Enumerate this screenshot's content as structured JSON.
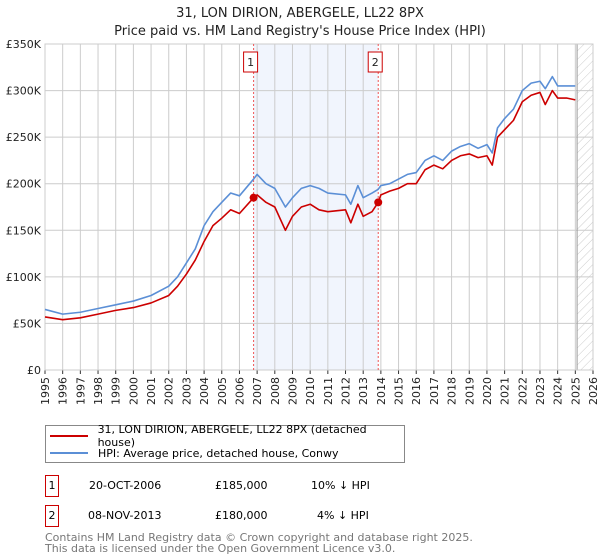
{
  "title": "31, LON DIRION, ABERGELE, LL22 8PX",
  "subtitle": "Price paid vs. HM Land Registry's House Price Index (HPI)",
  "chart_data": {
    "type": "line",
    "title": "31, LON DIRION, ABERGELE, LL22 8PX",
    "ylim": [
      0,
      350000
    ],
    "xlim": [
      1995,
      2026
    ],
    "yticks": [
      0,
      50000,
      100000,
      150000,
      200000,
      250000,
      300000,
      350000
    ],
    "ytick_labels": [
      "£0",
      "£50K",
      "£100K",
      "£150K",
      "£200K",
      "£250K",
      "£300K",
      "£350K"
    ],
    "xticks": [
      "1995",
      "1996",
      "1997",
      "1998",
      "1999",
      "2000",
      "2001",
      "2002",
      "2003",
      "2004",
      "2005",
      "2006",
      "2007",
      "2008",
      "2009",
      "2010",
      "2011",
      "2012",
      "2013",
      "2014",
      "2015",
      "2016",
      "2017",
      "2018",
      "2019",
      "2020",
      "2021",
      "2022",
      "2023",
      "2024",
      "2025",
      "2026"
    ],
    "grid": true,
    "shaded_range": [
      2006.8,
      2013.85
    ],
    "forecast_hatch_from": 2025.1,
    "series": [
      {
        "name": "31, LON DIRION, ABERGELE, LL22 8PX (detached house)",
        "color": "#cc0000",
        "x": [
          1995,
          1996,
          1997,
          1998,
          1999,
          2000,
          2001,
          2002,
          2002.5,
          2003,
          2003.5,
          2004,
          2004.5,
          2005,
          2005.5,
          2006,
          2006.8,
          2007,
          2007.5,
          2008,
          2008.6,
          2009,
          2009.5,
          2010,
          2010.5,
          2011,
          2012,
          2012.3,
          2012.7,
          2013,
          2013.5,
          2013.85,
          2014,
          2014.5,
          2015,
          2015.5,
          2016,
          2016.5,
          2017,
          2017.5,
          2018,
          2018.5,
          2019,
          2019.5,
          2020,
          2020.3,
          2020.6,
          2021,
          2021.5,
          2022,
          2022.5,
          2023,
          2023.3,
          2023.7,
          2024,
          2024.5,
          2025
        ],
        "y": [
          57000,
          54000,
          56000,
          60000,
          64000,
          67000,
          72000,
          80000,
          90000,
          103000,
          118000,
          138000,
          155000,
          163000,
          172000,
          168000,
          185000,
          188000,
          180000,
          175000,
          150000,
          165000,
          175000,
          178000,
          172000,
          170000,
          172000,
          158000,
          178000,
          165000,
          170000,
          180000,
          188000,
          192000,
          195000,
          200000,
          200000,
          215000,
          220000,
          216000,
          225000,
          230000,
          232000,
          228000,
          230000,
          220000,
          250000,
          258000,
          268000,
          288000,
          295000,
          298000,
          285000,
          300000,
          292000,
          292000,
          290000
        ]
      },
      {
        "name": "HPI: Average price, detached house, Conwy",
        "color": "#5b8fd6",
        "x": [
          1995,
          1996,
          1997,
          1998,
          1999,
          2000,
          2001,
          2002,
          2002.5,
          2003,
          2003.5,
          2004,
          2004.5,
          2005,
          2005.5,
          2006,
          2006.8,
          2007,
          2007.5,
          2008,
          2008.6,
          2009,
          2009.5,
          2010,
          2010.5,
          2011,
          2012,
          2012.3,
          2012.7,
          2013,
          2013.5,
          2013.85,
          2014,
          2014.5,
          2015,
          2015.5,
          2016,
          2016.5,
          2017,
          2017.5,
          2018,
          2018.5,
          2019,
          2019.5,
          2020,
          2020.3,
          2020.6,
          2021,
          2021.5,
          2022,
          2022.5,
          2023,
          2023.3,
          2023.7,
          2024,
          2024.5,
          2025
        ],
        "y": [
          65000,
          60000,
          62000,
          66000,
          70000,
          74000,
          80000,
          90000,
          100000,
          115000,
          130000,
          155000,
          170000,
          180000,
          190000,
          187000,
          205000,
          210000,
          200000,
          195000,
          175000,
          185000,
          195000,
          198000,
          195000,
          190000,
          188000,
          178000,
          198000,
          185000,
          190000,
          194000,
          198000,
          200000,
          205000,
          210000,
          212000,
          225000,
          230000,
          225000,
          235000,
          240000,
          243000,
          238000,
          242000,
          233000,
          260000,
          270000,
          280000,
          300000,
          308000,
          310000,
          302000,
          315000,
          305000,
          305000,
          305000
        ]
      }
    ],
    "sales": [
      {
        "label": "1",
        "x": 2006.8,
        "y": 185000
      },
      {
        "label": "2",
        "x": 2013.85,
        "y": 180000
      }
    ]
  },
  "legend": {
    "property": "31, LON DIRION, ABERGELE, LL22 8PX (detached house)",
    "hpi": "HPI: Average price, detached house, Conwy"
  },
  "transactions": [
    {
      "num": "1",
      "date": "20-OCT-2006",
      "price": "£185,000",
      "delta": "10% ↓ HPI"
    },
    {
      "num": "2",
      "date": "08-NOV-2013",
      "price": "£180,000",
      "delta": "4% ↓ HPI"
    }
  ],
  "footer": {
    "line1": "Contains HM Land Registry data © Crown copyright and database right 2025.",
    "line2": "This data is licensed under the Open Government Licence v3.0."
  }
}
